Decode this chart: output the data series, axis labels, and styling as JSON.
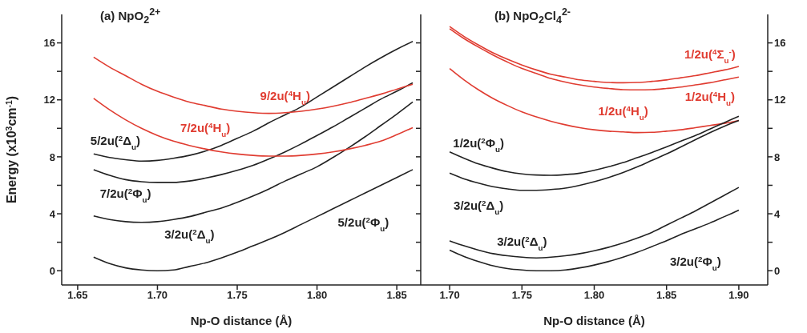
{
  "chart_data": [
    {
      "type": "line",
      "title": "(a) NpO$_{2}$$^{2+}$",
      "xlabel": "Np-O distance (Å)",
      "ylabel": "Energy (x10$^{3}$cm$^{-1}$)",
      "xlim": [
        1.64,
        1.865
      ],
      "xticks": [
        1.65,
        {
          "value": 1.7,
          "label": "1.70"
        },
        1.75,
        {
          "value": 1.8,
          "label": "1.80"
        },
        1.85
      ],
      "ylim": [
        -1,
        18
      ],
      "yticks": [
        0,
        {
          "value": 2,
          "label": null
        },
        4,
        {
          "value": 6,
          "label": null
        },
        8,
        {
          "value": 10,
          "label": null
        },
        12,
        {
          "value": 14,
          "label": null
        },
        16
      ],
      "marker": "none",
      "line_style": "solid",
      "x": [
        1.66,
        1.67,
        1.68,
        1.69,
        1.7,
        1.71,
        1.72,
        1.73,
        1.74,
        1.75,
        1.76,
        1.77,
        1.78,
        1.79,
        1.8,
        1.81,
        1.82,
        1.83,
        1.84,
        1.85,
        1.86
      ],
      "series": [
        {
          "name": "5/2u($^{2}$Φ$_{u}$)",
          "color": "#222222",
          "values": [
            0.95,
            0.5,
            0.2,
            0.05,
            0,
            0.05,
            0.3,
            0.55,
            0.9,
            1.3,
            1.75,
            2.2,
            2.7,
            3.25,
            3.8,
            4.35,
            4.9,
            5.45,
            6.0,
            6.55,
            7.1
          ]
        },
        {
          "name": "3/2u($^{2}$Δ$_{u}$)",
          "color": "#222222",
          "values": [
            3.85,
            3.6,
            3.45,
            3.4,
            3.45,
            3.6,
            3.8,
            4.1,
            4.4,
            4.8,
            5.25,
            5.75,
            6.3,
            6.8,
            7.3,
            7.95,
            8.65,
            9.4,
            10.2,
            11.0,
            11.85
          ]
        },
        {
          "name": "7/2u($^{2}$Φ$_{u}$)",
          "color": "#222222",
          "values": [
            7.1,
            6.7,
            6.4,
            6.25,
            6.2,
            6.2,
            6.3,
            6.5,
            6.75,
            7.05,
            7.4,
            7.85,
            8.35,
            8.9,
            9.5,
            10.1,
            10.75,
            11.4,
            12.05,
            12.6,
            13.2
          ]
        },
        {
          "name": "5/2u($^{2}$Δ$_{u}$)",
          "color": "#222222",
          "values": [
            8.2,
            7.95,
            7.8,
            7.7,
            7.75,
            7.9,
            8.1,
            8.4,
            8.8,
            9.3,
            9.8,
            10.4,
            10.95,
            11.5,
            12.2,
            12.9,
            13.6,
            14.3,
            14.95,
            15.55,
            16.1
          ]
        },
        {
          "name": "9/2u($^{4}$H$_{u}$)",
          "color": "#e03c31",
          "values": [
            15.0,
            14.3,
            13.7,
            13.1,
            12.6,
            12.2,
            11.85,
            11.6,
            11.35,
            11.2,
            11.1,
            11.05,
            11.1,
            11.2,
            11.35,
            11.55,
            11.8,
            12.1,
            12.4,
            12.75,
            13.1
          ]
        },
        {
          "name": "7/2u($^{4}$H$_{u}$)",
          "color": "#e03c31",
          "values": [
            12.1,
            11.3,
            10.6,
            10.0,
            9.5,
            9.1,
            8.8,
            8.55,
            8.35,
            8.2,
            8.1,
            8.05,
            8.05,
            8.1,
            8.2,
            8.35,
            8.55,
            8.8,
            9.1,
            9.55,
            10.05
          ]
        }
      ]
    },
    {
      "type": "line",
      "title": "(b) NpO$_{2}$Cl$_{4}$$^{2-}$",
      "xlabel": "Np-O distance (Å)",
      "xlim": [
        1.68,
        1.92
      ],
      "xticks": [
        {
          "value": 1.7,
          "label": "1.70"
        },
        1.75,
        {
          "value": 1.8,
          "label": "1.80"
        },
        1.85,
        {
          "value": 1.9,
          "label": "1.90"
        }
      ],
      "y2lim": [
        -1,
        18
      ],
      "y2ticks": [
        0,
        {
          "value": 2,
          "label": null
        },
        4,
        {
          "value": 6,
          "label": null
        },
        8,
        {
          "value": 10,
          "label": null
        },
        12,
        {
          "value": 14,
          "label": null
        },
        16
      ],
      "marker": "none",
      "line_style": "solid",
      "x": [
        1.7,
        1.71,
        1.72,
        1.73,
        1.74,
        1.75,
        1.76,
        1.77,
        1.78,
        1.79,
        1.8,
        1.81,
        1.82,
        1.83,
        1.84,
        1.85,
        1.86,
        1.87,
        1.88,
        1.89,
        1.9
      ],
      "series": [
        {
          "name": "1/2u($^{4}$Σ$_{u}$$^{-}$)",
          "color": "#e03c31",
          "axis": "y2",
          "values": [
            17.15,
            16.45,
            15.85,
            15.3,
            14.85,
            14.45,
            14.1,
            13.8,
            13.6,
            13.4,
            13.3,
            13.22,
            13.2,
            13.22,
            13.3,
            13.4,
            13.55,
            13.7,
            13.9,
            14.1,
            14.35
          ]
        },
        {
          "name": "1/2u($^{4}$H$_{u}$)",
          "color": "#e03c31",
          "axis": "y2",
          "values": [
            17.0,
            16.3,
            15.7,
            15.15,
            14.65,
            14.2,
            13.85,
            13.5,
            13.25,
            13.05,
            12.9,
            12.8,
            12.72,
            12.7,
            12.72,
            12.8,
            12.9,
            13.05,
            13.2,
            13.4,
            13.6
          ]
        },
        {
          "name": "1/2u($^{4}$H$_{u}$)",
          "color": "#e03c31",
          "axis": "y2",
          "values": [
            14.2,
            13.4,
            12.7,
            12.1,
            11.6,
            11.15,
            10.8,
            10.5,
            10.25,
            10.05,
            9.9,
            9.8,
            9.75,
            9.7,
            9.72,
            9.8,
            9.9,
            10.05,
            10.2,
            10.35,
            10.55
          ]
        },
        {
          "name": "1/2u($^{2}$Φ$_{u}$)",
          "color": "#222222",
          "axis": "y2",
          "values": [
            8.35,
            7.9,
            7.5,
            7.2,
            6.95,
            6.8,
            6.72,
            6.7,
            6.75,
            6.85,
            7.05,
            7.3,
            7.6,
            7.95,
            8.3,
            8.7,
            9.1,
            9.5,
            9.95,
            10.4,
            10.85
          ]
        },
        {
          "name": "3/2u($^{2}$Δ$_{u}$)",
          "color": "#222222",
          "axis": "y2",
          "values": [
            6.85,
            6.45,
            6.15,
            5.9,
            5.75,
            5.65,
            5.65,
            5.7,
            5.8,
            6.0,
            6.25,
            6.55,
            6.9,
            7.3,
            7.75,
            8.2,
            8.7,
            9.2,
            9.7,
            10.15,
            10.55
          ]
        },
        {
          "name": "3/2u($^{2}$Δ$_{u}$)",
          "color": "#222222",
          "axis": "y2",
          "values": [
            2.1,
            1.75,
            1.45,
            1.2,
            1.05,
            0.95,
            0.9,
            0.95,
            1.05,
            1.2,
            1.4,
            1.65,
            1.95,
            2.3,
            2.7,
            3.2,
            3.7,
            4.2,
            4.75,
            5.3,
            5.85
          ]
        },
        {
          "name": "3/2u($^{2}$Φ$_{u}$)",
          "color": "#222222",
          "axis": "y2",
          "values": [
            1.45,
            1.0,
            0.65,
            0.35,
            0.15,
            0.05,
            0,
            0,
            0.05,
            0.2,
            0.4,
            0.65,
            0.95,
            1.3,
            1.7,
            2.1,
            2.55,
            2.95,
            3.35,
            3.8,
            4.25
          ]
        }
      ]
    }
  ]
}
